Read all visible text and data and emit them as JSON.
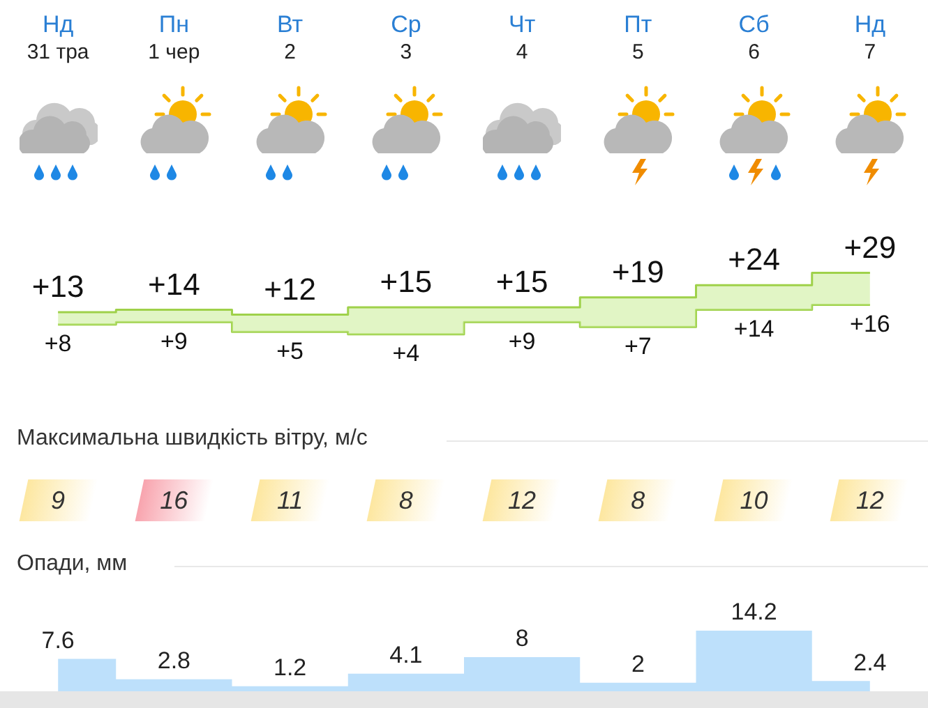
{
  "chart_data": [
    {
      "type": "step",
      "categories": [
        "Нд 31 тра",
        "Пн 1 чер",
        "Вт 2",
        "Ср 3",
        "Чт 4",
        "Пт 5",
        "Сб 6",
        "Нд 7"
      ],
      "series": [
        {
          "values": [
            13,
            14,
            12,
            15,
            15,
            19,
            24,
            29
          ],
          "color": "#9fd14a",
          "value_labels": [
            "+13",
            "+14",
            "+12",
            "+15",
            "+15",
            "+19",
            "+24",
            "+29"
          ]
        },
        {
          "values": [
            8,
            9,
            5,
            4,
            9,
            7,
            14,
            16
          ],
          "color": "#9fd14a",
          "value_labels": [
            "+8",
            "+9",
            "+5",
            "+4",
            "+9",
            "+7",
            "+14",
            "+16"
          ]
        }
      ],
      "tick_labels": "x"
    },
    {
      "type": "other",
      "title": "Максимальна швидкість вітру, м/с",
      "categories": [
        null,
        null,
        null,
        null,
        null,
        null,
        null,
        null
      ],
      "values": [
        9,
        16,
        11,
        8,
        12,
        8,
        10,
        12
      ],
      "data_labels": true,
      "colors": [
        "#fde7a0",
        "#f8a4ae",
        "#fde7a0",
        "#fde7a0",
        "#fde7a0",
        "#fde7a0",
        "#fde7a0",
        "#fde7a0"
      ]
    },
    {
      "type": "area",
      "title": "Опади, мм",
      "categories": [
        null,
        null,
        null,
        null,
        null,
        null,
        null,
        null
      ],
      "values": [
        7.6,
        2.8,
        1.2,
        4.1,
        8,
        2,
        14.2,
        2.4
      ],
      "color": "#bde0fb",
      "data_labels": true,
      "tick_labels": false
    }
  ]
}
